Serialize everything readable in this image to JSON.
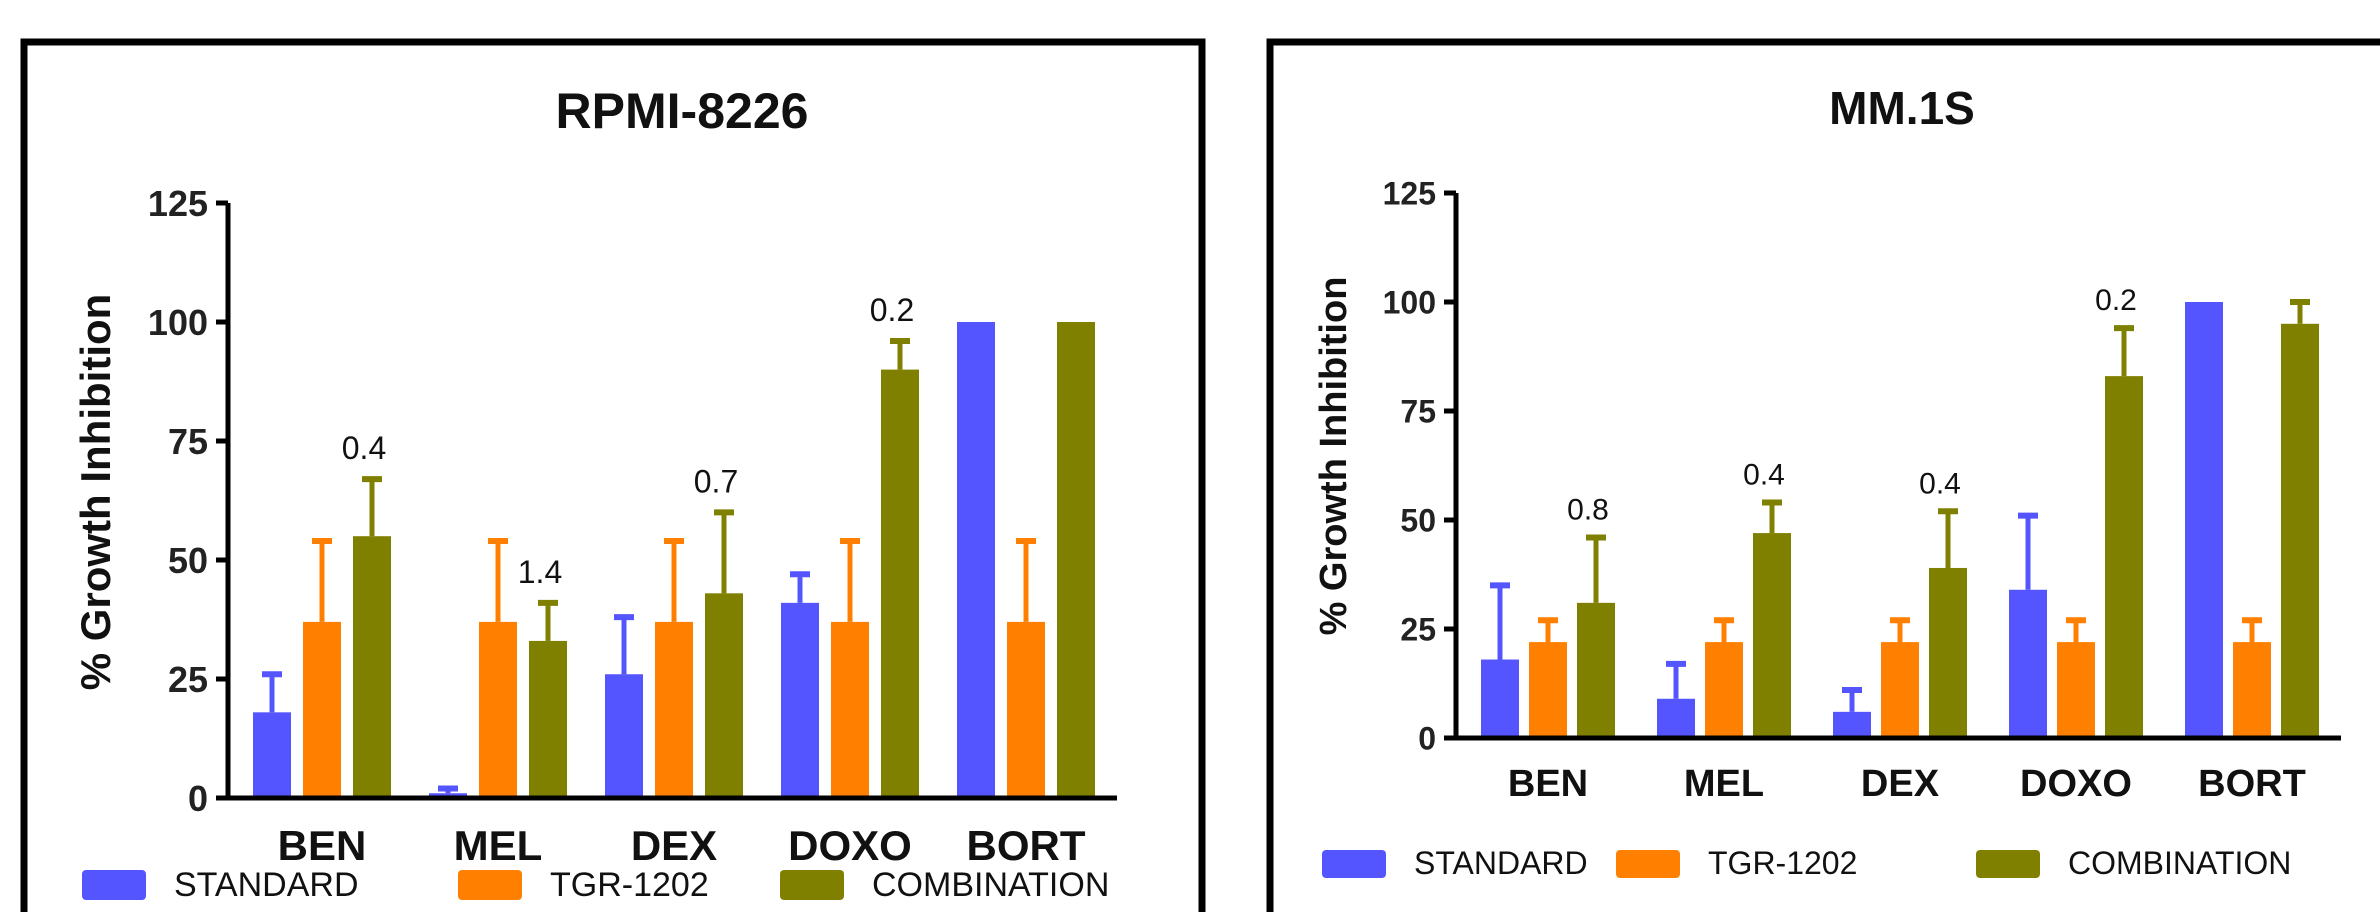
{
  "colors": {
    "standard": "#5555ff",
    "tgr": "#ff8000",
    "combination": "#808000"
  },
  "chart_data": [
    {
      "type": "bar",
      "title": "RPMI-8226",
      "ylabel": "% Growth Inhibition",
      "ylim": [
        0,
        125
      ],
      "yticks": [
        0,
        25,
        50,
        75,
        100,
        125
      ],
      "categories": [
        "BEN",
        "MEL",
        "DEX",
        "DOXO",
        "BORT"
      ],
      "series": [
        {
          "name": "STANDARD",
          "values": [
            18,
            1,
            26,
            41,
            100
          ],
          "errors": [
            8,
            1,
            12,
            6,
            0
          ]
        },
        {
          "name": "TGR-1202",
          "values": [
            37,
            37,
            37,
            37,
            37
          ],
          "errors": [
            17,
            17,
            17,
            17,
            17
          ]
        },
        {
          "name": "COMBINATION",
          "values": [
            55,
            33,
            43,
            90,
            100
          ],
          "errors": [
            12,
            8,
            17,
            6,
            0
          ]
        }
      ],
      "annotations": [
        "0.4",
        "1.4",
        "0.7",
        "0.2",
        ""
      ]
    },
    {
      "type": "bar",
      "title": "MM.1S",
      "ylabel": "% Growth Inhibition",
      "ylim": [
        0,
        125
      ],
      "yticks": [
        0,
        25,
        50,
        75,
        100,
        125
      ],
      "categories": [
        "BEN",
        "MEL",
        "DEX",
        "DOXO",
        "BORT"
      ],
      "series": [
        {
          "name": "STANDARD",
          "values": [
            18,
            9,
            6,
            34,
            100
          ],
          "errors": [
            17,
            8,
            5,
            17,
            0
          ]
        },
        {
          "name": "TGR-1202",
          "values": [
            22,
            22,
            22,
            22,
            22
          ],
          "errors": [
            5,
            5,
            5,
            5,
            5
          ]
        },
        {
          "name": "COMBINATION",
          "values": [
            31,
            47,
            39,
            83,
            95
          ],
          "errors": [
            15,
            7,
            13,
            11,
            5
          ]
        }
      ],
      "annotations": [
        "0.8",
        "0.4",
        "0.4",
        "0.2",
        ""
      ]
    }
  ]
}
